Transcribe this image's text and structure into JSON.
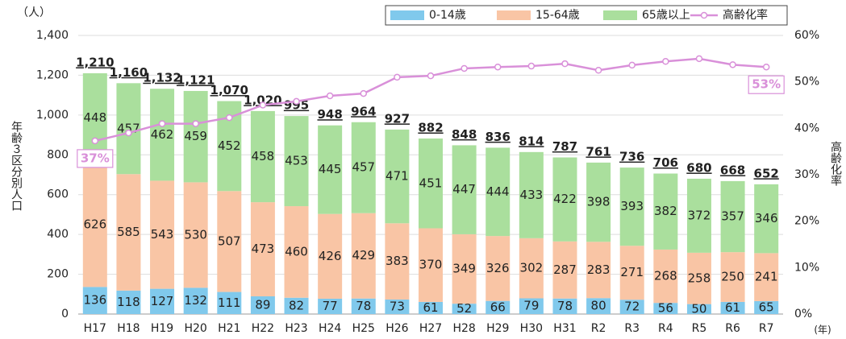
{
  "chart_data": {
    "type": "stacked-bar-line",
    "yunit": "（人）",
    "xunit": "(年)",
    "ylabel": "年齢３区分別人口",
    "y2label": "高齢化率",
    "categories": [
      "H17",
      "H18",
      "H19",
      "H20",
      "H21",
      "H22",
      "H23",
      "H24",
      "H25",
      "H26",
      "H27",
      "H28",
      "H29",
      "H30",
      "H31",
      "R2",
      "R3",
      "R4",
      "R5",
      "R6",
      "R7"
    ],
    "series": [
      {
        "name": "0-14歳",
        "color": "#80c9ec",
        "values": [
          136,
          118,
          127,
          132,
          111,
          89,
          82,
          77,
          78,
          73,
          61,
          52,
          66,
          79,
          78,
          80,
          72,
          56,
          50,
          61,
          65
        ]
      },
      {
        "name": "15-64歳",
        "color": "#f9c5a5",
        "values": [
          626,
          585,
          543,
          530,
          507,
          473,
          460,
          426,
          429,
          383,
          370,
          349,
          326,
          302,
          287,
          283,
          271,
          268,
          258,
          250,
          241
        ]
      },
      {
        "name": "65歳以上",
        "color": "#aadf9d",
        "values": [
          448,
          457,
          462,
          459,
          452,
          458,
          453,
          445,
          457,
          471,
          451,
          447,
          444,
          433,
          422,
          398,
          393,
          382,
          372,
          357,
          346
        ]
      },
      {
        "name": "高齢化率",
        "color": "#d990d9",
        "axis": "y2",
        "values": [
          37.3,
          39,
          41,
          41,
          42.3,
          45,
          45.8,
          47,
          47.5,
          51,
          51.3,
          52.9,
          53.2,
          53.4,
          53.9,
          52.5,
          53.6,
          54.4,
          55,
          53.7,
          53.2
        ],
        "value_labels": [
          "37%",
          null,
          null,
          null,
          null,
          null,
          null,
          null,
          null,
          null,
          null,
          null,
          null,
          null,
          null,
          null,
          null,
          null,
          null,
          null,
          "53%"
        ]
      }
    ],
    "totals": {
      "values": [
        1210,
        1160,
        1132,
        1121,
        1070,
        1020,
        995,
        948,
        964,
        927,
        882,
        848,
        836,
        814,
        787,
        761,
        736,
        706,
        680,
        668,
        652
      ],
      "value_labels": [
        "1,210",
        "1,160",
        "1,132",
        "1,121",
        "1,070",
        "1,020",
        "995",
        "948",
        "964",
        "927",
        "882",
        "848",
        "836",
        "814",
        "787",
        "761",
        "736",
        "706",
        "680",
        "668",
        "652"
      ]
    },
    "ylim": [
      0,
      1400
    ],
    "yticks": [
      0,
      200,
      400,
      600,
      800,
      {
        "value": 1000,
        "label": "1,000"
      },
      {
        "value": 1200,
        "label": "1,200"
      },
      {
        "value": 1400,
        "label": "1,400"
      }
    ],
    "y2lim": [
      0,
      60
    ],
    "y2ticks": [
      {
        "value": 0,
        "label": "0%"
      },
      {
        "value": 10,
        "label": "10%"
      },
      {
        "value": 20,
        "label": "20%"
      },
      {
        "value": 30,
        "label": "30%"
      },
      {
        "value": 40,
        "label": "40%"
      },
      {
        "value": 50,
        "label": "50%"
      },
      {
        "value": 60,
        "label": "60%"
      }
    ],
    "grid": true
  }
}
